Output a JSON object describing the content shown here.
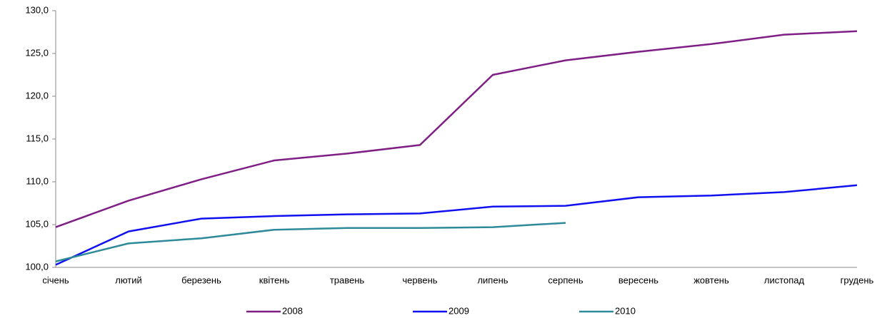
{
  "chart_data": {
    "type": "line",
    "categories": [
      "січень",
      "лютий",
      "березень",
      "квітень",
      "травень",
      "червень",
      "липень",
      "серпень",
      "вересень",
      "жовтень",
      "листопад",
      "грудень"
    ],
    "series": [
      {
        "name": "2008",
        "color": "#7f1f86",
        "values": [
          104.7,
          107.8,
          110.3,
          112.5,
          113.3,
          114.3,
          122.5,
          124.2,
          125.2,
          126.1,
          127.2,
          127.6
        ]
      },
      {
        "name": "2009",
        "color": "#1010f0",
        "values": [
          100.3,
          104.2,
          105.7,
          106.0,
          106.2,
          106.3,
          107.1,
          107.2,
          108.2,
          108.4,
          108.8,
          109.6
        ]
      },
      {
        "name": "2010",
        "color": "#2e8a98",
        "values": [
          100.7,
          102.8,
          103.4,
          104.4,
          104.6,
          104.6,
          104.7,
          105.2,
          null,
          null,
          null,
          null
        ]
      }
    ],
    "ylim": [
      100,
      130
    ],
    "yticks": [
      {
        "value": 100,
        "label": "100,0"
      },
      {
        "value": 105,
        "label": "105,0"
      },
      {
        "value": 110,
        "label": "110,0"
      },
      {
        "value": 115,
        "label": "115,0"
      },
      {
        "value": 120,
        "label": "120,0"
      },
      {
        "value": 125,
        "label": "125,0"
      },
      {
        "value": 130,
        "label": "130,0"
      }
    ],
    "grid": false
  }
}
